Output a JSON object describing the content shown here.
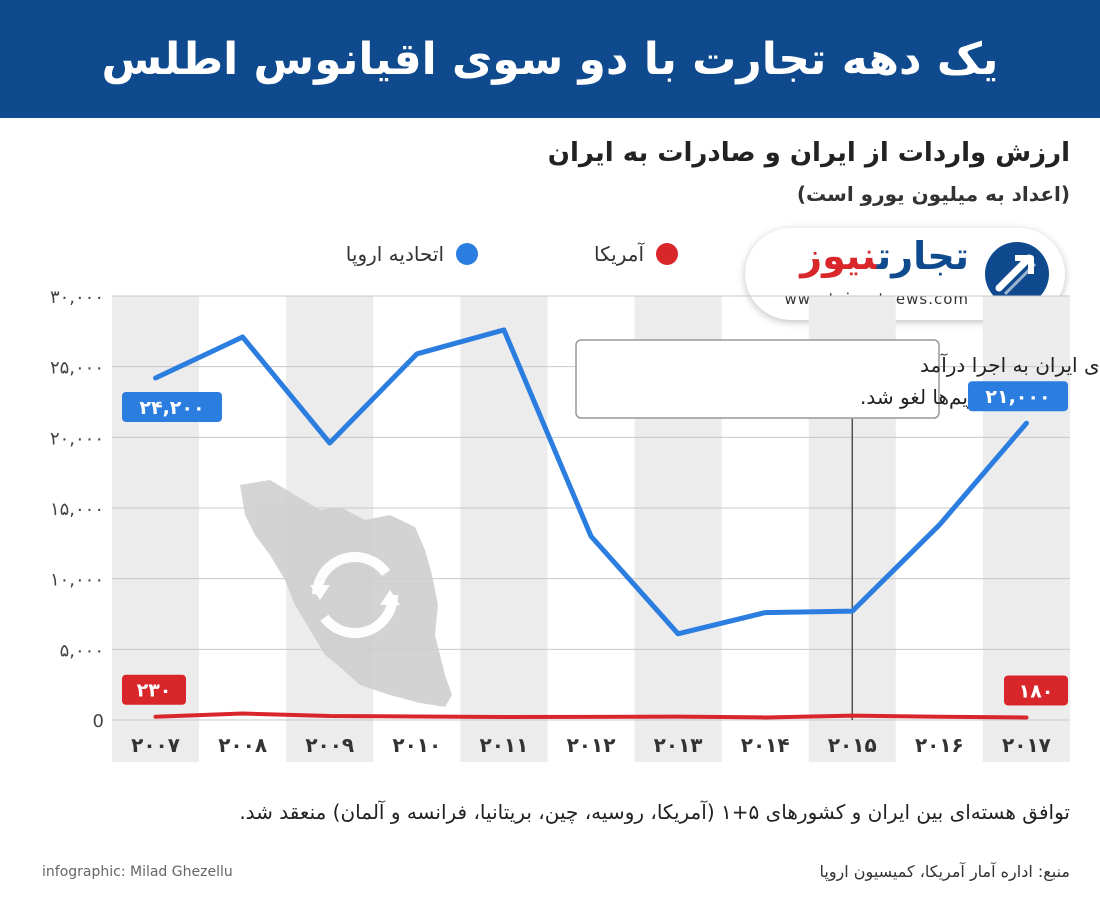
{
  "header": {
    "title": "یک دهه تجارت با دو سوی اقیانوس اطلس"
  },
  "logo": {
    "brand_part1": "تجارت",
    "brand_part2": "نیوز",
    "domain": "www.tejaratnews.com"
  },
  "colors": {
    "eu": "#2b7de0",
    "usa": "#d8262b",
    "banner": "#0f4a8f"
  },
  "chart_data": {
    "type": "line",
    "title": "ارزش واردات از ایران و صادرات به ایران",
    "subtitle": "(اعداد به میلیون یورو است)",
    "categories": [
      "۲۰۰۷",
      "۲۰۰۸",
      "۲۰۰۹",
      "۲۰۱۰",
      "۲۰۱۱",
      "۲۰۱۲",
      "۲۰۱۳",
      "۲۰۱۴",
      "۲۰۱۵",
      "۲۰۱۶",
      "۲۰۱۷"
    ],
    "series": [
      {
        "name": "اتحادیه اروپا",
        "color": "#2b7de0",
        "values": [
          24200,
          27100,
          19600,
          25900,
          27600,
          13000,
          6100,
          7600,
          7700,
          13800,
          21000
        ]
      },
      {
        "name": "آمریکا",
        "color": "#d8262b",
        "values": [
          230,
          460,
          280,
          250,
          210,
          220,
          240,
          180,
          310,
          230,
          180
        ]
      }
    ],
    "ylim": [
      0,
      30000
    ],
    "yticks": [
      0,
      5000,
      10000,
      15000,
      20000,
      25000,
      30000
    ],
    "ytick_labels": [
      "0",
      "۵,۰۰۰",
      "۱۰,۰۰۰",
      "۱۵,۰۰۰",
      "۲۰,۰۰۰",
      "۲۵,۰۰۰",
      "۳۰,۰۰۰"
    ],
    "legend_position": "top",
    "data_labels": [
      {
        "text": "۲۴,۲۰۰",
        "series": 0,
        "index": 0
      },
      {
        "text": "۲۱,۰۰۰",
        "series": 0,
        "index": 10
      },
      {
        "text": "۲۳۰",
        "series": 1,
        "index": 0
      },
      {
        "text": "۱۸۰",
        "series": 1,
        "index": 10
      }
    ],
    "annotation": {
      "line1": "توافق هسته‌ای ایران به اجرا درآمد",
      "line2": "و تحریم‌ها لغو شد.",
      "index": 8
    }
  },
  "footer": {
    "note": "توافق هسته‌ای بین ایران و کشورهای ۵+۱ (آمریکا، روسیه، چین، بریتانیا، فرانسه و آلمان) منعقد شد.",
    "credit": "infographic: Milad Ghezellu",
    "source": "منبع: اداره آمار آمریکا، کمیسیون اروپا"
  }
}
